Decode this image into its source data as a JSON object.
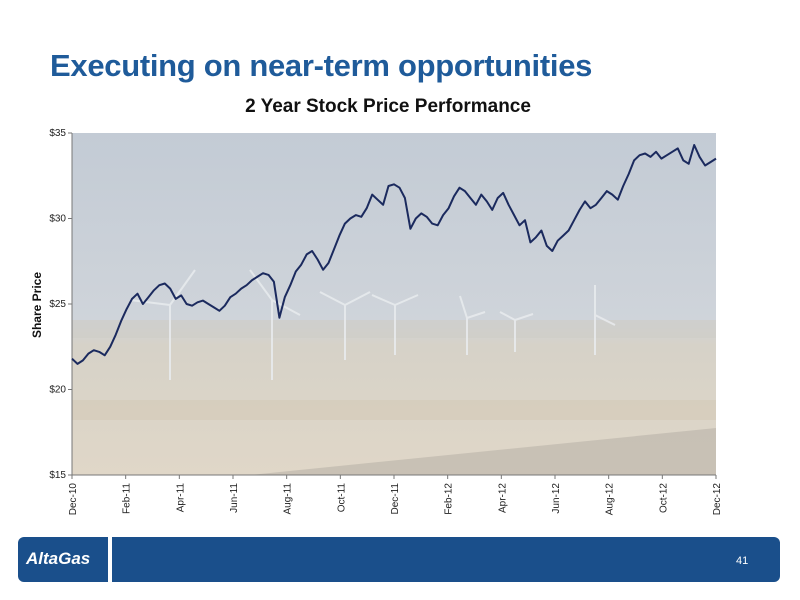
{
  "slide": {
    "title": "Executing on near-term opportunities",
    "logo": "AltaGas",
    "page_number": "41"
  },
  "chart_data": {
    "type": "line",
    "title": "2 Year Stock Price Performance",
    "ylabel": "Share Price",
    "xlabel": "",
    "ylim": [
      15,
      35
    ],
    "yticks": [
      "$35",
      "$30",
      "$25",
      "$20",
      "$15"
    ],
    "ytick_values": [
      35,
      30,
      25,
      20,
      15
    ],
    "xticks": [
      "Dec-10",
      "Feb-11",
      "Apr-11",
      "Jun-11",
      "Aug-11",
      "Oct-11",
      "Dec-11",
      "Feb-12",
      "Apr-12",
      "Jun-12",
      "Aug-12",
      "Oct-12",
      "Dec-12"
    ],
    "grid": false,
    "series": [
      {
        "values": [
          21.8,
          21.5,
          21.7,
          22.1,
          22.3,
          22.2,
          22.0,
          22.5,
          23.2,
          24.0,
          24.7,
          25.3,
          25.6,
          25.0,
          25.4,
          25.8,
          26.1,
          26.2,
          25.9,
          25.3,
          25.5,
          25.0,
          24.9,
          25.1,
          25.2,
          25.0,
          24.8,
          24.6,
          24.9,
          25.4,
          25.6,
          25.9,
          26.1,
          26.4,
          26.6,
          26.8,
          26.7,
          26.3,
          24.2,
          25.4,
          26.1,
          26.9,
          27.3,
          27.9,
          28.1,
          27.6,
          27.0,
          27.4,
          28.2,
          29.0,
          29.7,
          30.0,
          30.2,
          30.1,
          30.6,
          31.4,
          31.1,
          30.8,
          31.9,
          32.0,
          31.8,
          31.2,
          29.4,
          30.0,
          30.3,
          30.1,
          29.7,
          29.6,
          30.2,
          30.6,
          31.3,
          31.8,
          31.6,
          31.2,
          30.8,
          31.4,
          31.0,
          30.5,
          31.2,
          31.5,
          30.8,
          30.2,
          29.6,
          29.9,
          28.6,
          28.9,
          29.3,
          28.4,
          28.1,
          28.7,
          29.0,
          29.3,
          29.9,
          30.5,
          31.0,
          30.6,
          30.8,
          31.2,
          31.6,
          31.4,
          31.1,
          31.9,
          32.6,
          33.4,
          33.7,
          33.8,
          33.6,
          33.9,
          33.5,
          33.7,
          33.9,
          34.1,
          33.4,
          33.2,
          34.3,
          33.6,
          33.1,
          33.3,
          33.5
        ]
      }
    ]
  }
}
